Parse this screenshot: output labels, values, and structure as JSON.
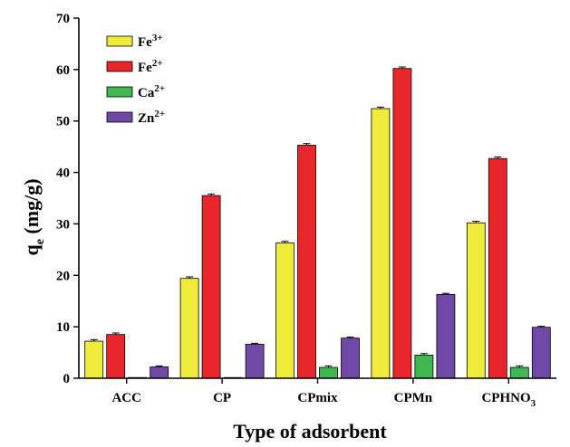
{
  "chart_data": {
    "type": "bar",
    "title": "",
    "xlabel": "Type of adsorbent",
    "ylabel_main": "q",
    "ylabel_sub": "e",
    "ylabel_unit": " (mg/g)",
    "ylim": [
      0,
      70
    ],
    "yticks": [
      0,
      10,
      20,
      30,
      40,
      50,
      60,
      70
    ],
    "grid": false,
    "legend_position": "top-left",
    "categories": [
      {
        "main": "ACC",
        "sub": ""
      },
      {
        "main": "CP",
        "sub": ""
      },
      {
        "main": "CPmix",
        "sub": ""
      },
      {
        "main": "CPMn",
        "sub": ""
      },
      {
        "main": "CPHNO",
        "sub": "3"
      }
    ],
    "series": [
      {
        "name": "Fe",
        "sup": "3+",
        "color": "#f0ec3c",
        "values": [
          7.2,
          19.4,
          26.3,
          52.4,
          30.2
        ],
        "errors": [
          0.3,
          0.3,
          0.3,
          0.3,
          0.3
        ]
      },
      {
        "name": "Fe",
        "sup": "2+",
        "color": "#e8262b",
        "values": [
          8.5,
          35.5,
          45.3,
          60.2,
          42.7
        ],
        "errors": [
          0.3,
          0.3,
          0.3,
          0.3,
          0.3
        ]
      },
      {
        "name": "Ca",
        "sup": "2+",
        "color": "#3fb84f",
        "values": [
          0,
          0.1,
          2.1,
          4.5,
          2.1
        ],
        "errors": [
          0,
          0,
          0.3,
          0.3,
          0.3
        ]
      },
      {
        "name": "Zn",
        "sup": "2+",
        "color": "#7048a8",
        "values": [
          2.2,
          6.6,
          7.8,
          16.3,
          9.9
        ],
        "errors": [
          0.2,
          0.2,
          0.2,
          0.2,
          0.2
        ]
      }
    ]
  }
}
